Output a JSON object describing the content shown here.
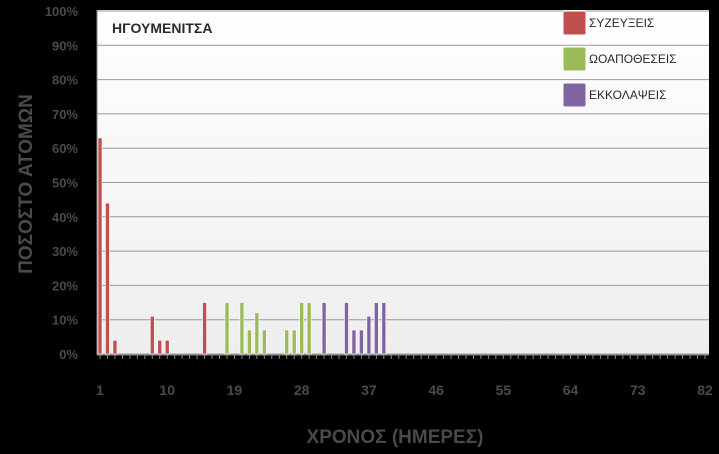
{
  "chart_data": {
    "type": "bar",
    "title": "ΗΓΟΥΜΕΝΙΤΣΑ",
    "xlabel": "ΧΡΟΝΟΣ (ΗΜΕΡΕΣ)",
    "ylabel": "ΠΟΣΟΣΤΟ ΑΤΟΜΩΝ",
    "xlim": [
      1,
      82
    ],
    "ylim": [
      0,
      100
    ],
    "x_ticks": [
      "1",
      "10",
      "19",
      "28",
      "37",
      "46",
      "55",
      "64",
      "73",
      "82"
    ],
    "y_ticks": [
      "0%",
      "10%",
      "20%",
      "30%",
      "40%",
      "50%",
      "60%",
      "70%",
      "80%",
      "90%",
      "100%"
    ],
    "grid": true,
    "legend_position": "top-right",
    "series": [
      {
        "name": "ΣΥΖΕΥΞΕΙΣ",
        "color": "#c0504d",
        "x": [
          1,
          2,
          3,
          8,
          9,
          10,
          15
        ],
        "values": [
          63,
          44,
          4,
          11,
          4,
          4,
          15
        ]
      },
      {
        "name": "ΩΟΑΠΟΘΕΣΕΙΣ",
        "color": "#9bbb59",
        "x": [
          18,
          20,
          21,
          22,
          23,
          26,
          27,
          28,
          29
        ],
        "values": [
          15,
          15,
          7,
          12,
          7,
          7,
          7,
          15,
          15
        ]
      },
      {
        "name": "ΕΚΚΟΛΑΨΕΙΣ",
        "color": "#8064a2",
        "x": [
          31,
          34,
          35,
          36,
          37,
          38,
          39
        ],
        "values": [
          15,
          15,
          7,
          7,
          11,
          15,
          15
        ]
      }
    ]
  }
}
